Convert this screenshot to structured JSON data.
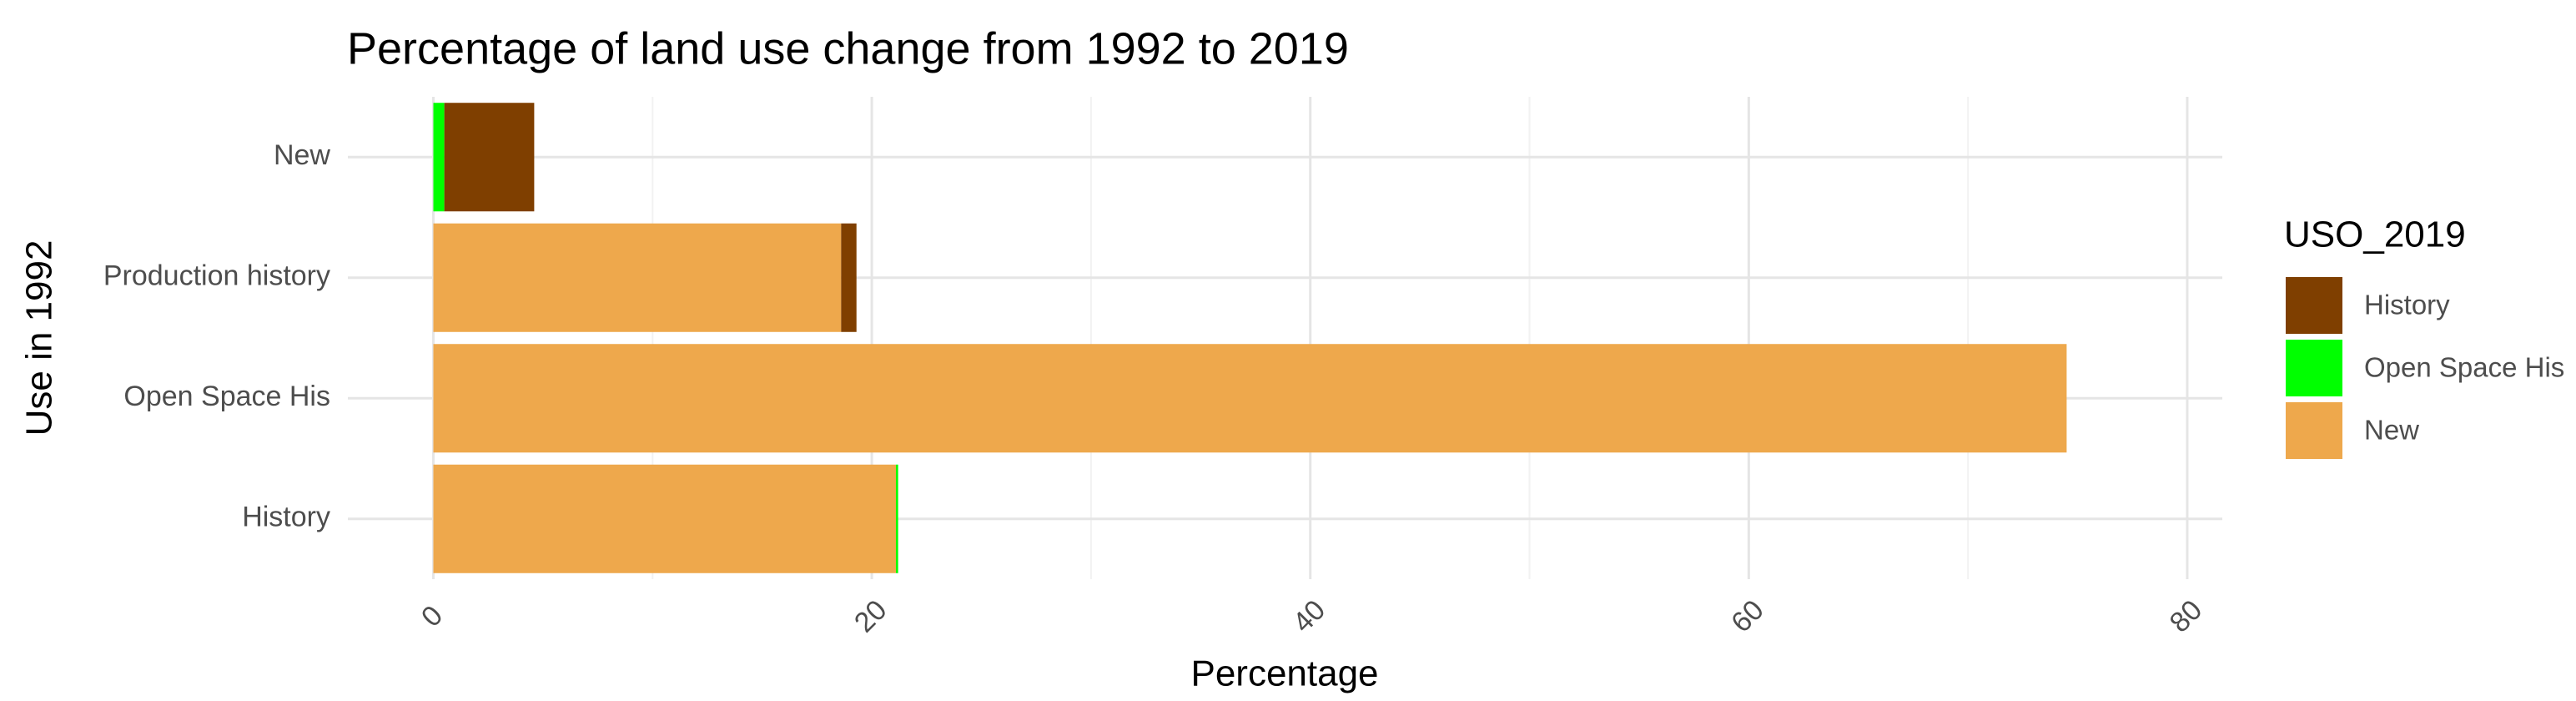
{
  "chart_data": {
    "type": "bar",
    "orientation": "horizontal",
    "stacked": true,
    "title": "Percentage of land use change from 1992 to 2019",
    "x_label": "Percentage",
    "y_label": "Use in 1992",
    "legend_title": "USO_2019",
    "categories": [
      "History",
      "Open Space His",
      "Production history",
      "New"
    ],
    "series": [
      {
        "name": "History",
        "color": "#7f3f00",
        "values": [
          0,
          0,
          0.7,
          4.1
        ]
      },
      {
        "name": "Open Space His",
        "color": "#00ff00",
        "values": [
          0.1,
          0,
          0,
          0.5
        ]
      },
      {
        "name": "New",
        "color": "#eea84c",
        "values": [
          21.1,
          74.5,
          18.6,
          0
        ]
      }
    ],
    "xlim": [
      -3.9,
      81.6
    ],
    "xticks": [
      0,
      20,
      40,
      60,
      80
    ],
    "xminor": [
      10,
      30,
      50,
      70
    ],
    "grid": true,
    "legend": "right"
  }
}
